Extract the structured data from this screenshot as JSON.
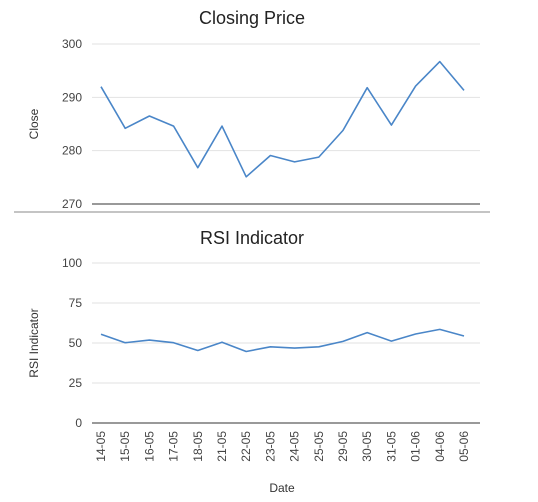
{
  "chart_data": [
    {
      "type": "line",
      "title": "Closing Price",
      "ylabel": "Close",
      "ylim": [
        270,
        300
      ],
      "yticks": [
        270,
        280,
        290,
        300
      ],
      "grid": true,
      "categories": [
        "14-05",
        "15-05",
        "16-05",
        "17-05",
        "18-05",
        "21-05",
        "22-05",
        "23-05",
        "24-05",
        "25-05",
        "29-05",
        "30-05",
        "31-05",
        "01-06",
        "04-06",
        "05-06"
      ],
      "series": [
        {
          "color": "#4a86c8",
          "values": [
            292,
            284.2,
            286.5,
            284.6,
            276.8,
            284.6,
            275.1,
            279.1,
            277.9,
            278.8,
            283.8,
            291.8,
            284.8,
            292.1,
            296.7,
            291.3
          ]
        }
      ]
    },
    {
      "type": "line",
      "title": "RSI Indicator",
      "ylabel": "RSI Indicator",
      "xlabel": "Date",
      "ylim": [
        0,
        100
      ],
      "yticks": [
        0,
        25,
        50,
        75,
        100
      ],
      "grid": true,
      "categories": [
        "14-05",
        "15-05",
        "16-05",
        "17-05",
        "18-05",
        "21-05",
        "22-05",
        "23-05",
        "24-05",
        "25-05",
        "29-05",
        "30-05",
        "31-05",
        "01-06",
        "04-06",
        "05-06"
      ],
      "series": [
        {
          "color": "#4a86c8",
          "values": [
            55.5,
            50.2,
            51.8,
            50.2,
            45.3,
            50.5,
            44.7,
            47.6,
            46.8,
            47.6,
            51,
            56.5,
            51.2,
            55.6,
            58.5,
            54.4
          ]
        }
      ]
    }
  ]
}
